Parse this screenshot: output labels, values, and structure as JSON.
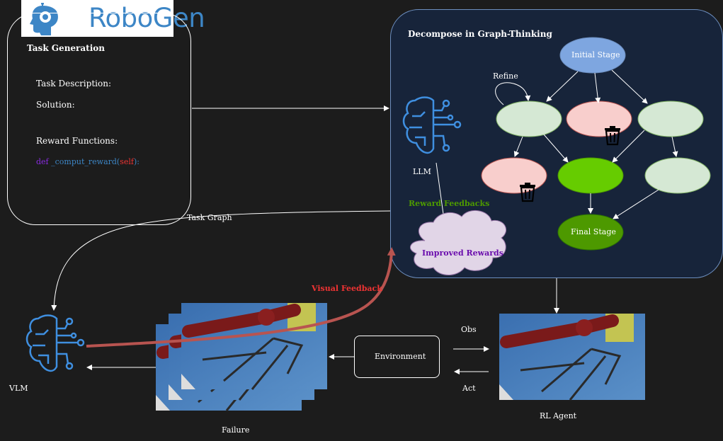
{
  "logo": {
    "text": "RoboGen",
    "icon": "robot-head-icon"
  },
  "task_generation": {
    "title": "Task Generation",
    "task_description_label": "Task Description:",
    "solution_label": "Solution:",
    "reward_functions_label": "Reward Functions:",
    "code": {
      "def": "def",
      "fn": "_comput_reward(",
      "self": "self",
      "close": "):"
    }
  },
  "graph_panel": {
    "title": "Decompose in Graph-Thinking",
    "initial_stage": "Initial Stage",
    "final_stage": "Final Stage",
    "refine": "Refine",
    "llm": "LLM",
    "reward_feedbacks": "Reward Feedbacks",
    "improved_rewards": "Improved Rewards"
  },
  "labels": {
    "task_graph": "Task Graph",
    "visual_feedback": "Visual Feedback",
    "vlm": "VLM",
    "failure": "Failure",
    "environment": "Environment",
    "obs": "Obs",
    "act": "Act",
    "rl_agent": "RL Agent"
  },
  "icons": [
    "brain-circuit-icon",
    "trash-icon",
    "robot-head-icon"
  ],
  "colors": {
    "background": "#1c1c1c",
    "panel": "#17243a",
    "panel_border": "#6c8ebf",
    "initial_node": "#7ea6e0",
    "pending_node": "#d5e8d4",
    "discarded_node": "#f8cecc",
    "active_node": "#66cc00",
    "final_node": "#4d9900",
    "reward_text": "#4d9900",
    "improved_text": "#6a0dad",
    "cloud": "#e1d5e7",
    "visual_feedback": "#ee3333",
    "feedback_arrow": "#b85450",
    "brain_icon": "#3f8fe0"
  }
}
